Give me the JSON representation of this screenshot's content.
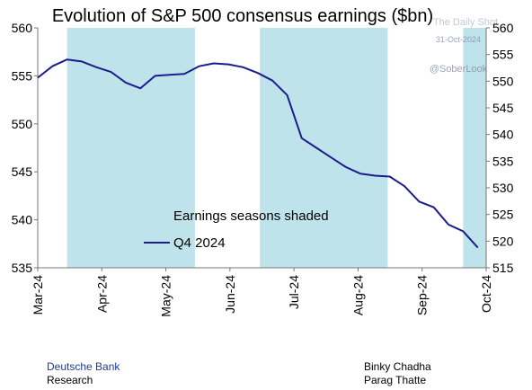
{
  "chart_data": {
    "type": "line",
    "title": "Evolution of S&P 500 consensus earnings ($bn)",
    "xlabel": "",
    "ylabel": "",
    "x_ticks": [
      "Mar-24",
      "Apr-24",
      "May-24",
      "Jun-24",
      "Jul-24",
      "Aug-24",
      "Sep-24",
      "Oct-24"
    ],
    "x_range": [
      "2024-03-01",
      "2024-10-01"
    ],
    "ylim_left": [
      535,
      560
    ],
    "yticks_left": [
      535,
      540,
      545,
      550,
      555,
      560
    ],
    "ylim_right": [
      515,
      560
    ],
    "yticks_right": [
      515,
      520,
      525,
      530,
      535,
      540,
      545,
      550,
      555,
      560
    ],
    "shaded_periods": [
      {
        "start": "2024-03-15",
        "end": "2024-05-15"
      },
      {
        "start": "2024-06-15",
        "end": "2024-08-15"
      },
      {
        "start": "2024-09-20",
        "end": "2024-10-01"
      }
    ],
    "shading_note": "Earnings seasons shaded",
    "legend_position": "center-left",
    "grid": false,
    "series": [
      {
        "name": "Q4 2024",
        "color": "#1c1c8c",
        "axis": "left",
        "x": [
          "2024-03-01",
          "2024-03-08",
          "2024-03-15",
          "2024-03-22",
          "2024-03-29",
          "2024-04-05",
          "2024-04-12",
          "2024-04-19",
          "2024-04-26",
          "2024-05-03",
          "2024-05-10",
          "2024-05-17",
          "2024-05-24",
          "2024-05-31",
          "2024-06-07",
          "2024-06-14",
          "2024-06-21",
          "2024-06-28",
          "2024-07-05",
          "2024-07-12",
          "2024-07-19",
          "2024-07-26",
          "2024-08-02",
          "2024-08-09",
          "2024-08-16",
          "2024-08-23",
          "2024-08-30",
          "2024-09-06",
          "2024-09-13",
          "2024-09-20",
          "2024-09-27"
        ],
        "values": [
          554.8,
          556.0,
          556.7,
          556.5,
          555.9,
          555.4,
          554.3,
          553.7,
          555.0,
          555.1,
          555.2,
          556.0,
          556.3,
          556.2,
          555.9,
          555.3,
          554.5,
          553.0,
          548.5,
          547.5,
          546.5,
          545.5,
          544.8,
          544.6,
          544.5,
          543.5,
          541.9,
          541.3,
          539.5,
          538.8,
          537.1
        ]
      }
    ]
  },
  "watermark": {
    "line1": "The Daily Shot",
    "line2": "31-Oct-2024",
    "line3": "@SoberLook"
  },
  "footer": {
    "company": "Deutsche Bank",
    "department": "Research",
    "author1": "Binky Chadha",
    "author2": "Parag Thatte"
  },
  "colors": {
    "shade": "#bfe3ea",
    "line": "#1c1c8c",
    "brand": "#1f3c8c",
    "text": "#000000"
  }
}
